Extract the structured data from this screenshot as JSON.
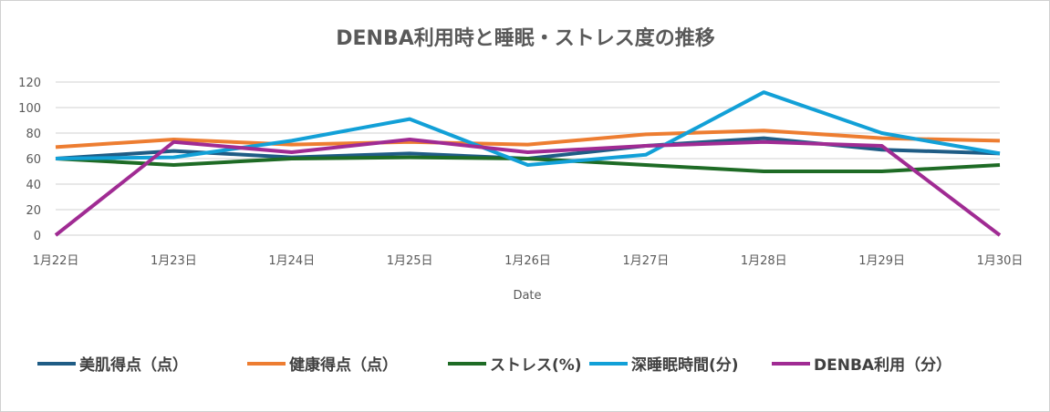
{
  "chart_data": {
    "type": "line",
    "title": "DENBA利用時と睡眠・ストレス度の推移",
    "xlabel": "Date",
    "ylabel": "",
    "ylim": [
      0,
      120
    ],
    "yticks": [
      0,
      20,
      40,
      60,
      80,
      100,
      120
    ],
    "grid": true,
    "legend_position": "bottom",
    "categories": [
      "1月22日",
      "1月23日",
      "1月24日",
      "1月25日",
      "1月26日",
      "1月27日",
      "1月28日",
      "1月29日",
      "1月30日"
    ],
    "series": [
      {
        "name": "美肌得点（点）",
        "color": "#1f5c85",
        "values": [
          60,
          66,
          61,
          64,
          60,
          70,
          76,
          67,
          64
        ]
      },
      {
        "name": "健康得点（点）",
        "color": "#ed7d31",
        "values": [
          69,
          75,
          71,
          73,
          71,
          79,
          82,
          76,
          74
        ]
      },
      {
        "name": "ストレス(%)",
        "color": "#1e6b25",
        "values": [
          60,
          55,
          60,
          61,
          60,
          55,
          50,
          50,
          55
        ]
      },
      {
        "name": "深睡眠時間(分)",
        "color": "#12a0d7",
        "values": [
          60,
          61,
          74,
          91,
          55,
          63,
          112,
          80,
          64
        ]
      },
      {
        "name": "DENBA利用（分）",
        "color": "#a02b93",
        "values": [
          0,
          73,
          65,
          75,
          65,
          70,
          73,
          70,
          0
        ]
      }
    ]
  }
}
